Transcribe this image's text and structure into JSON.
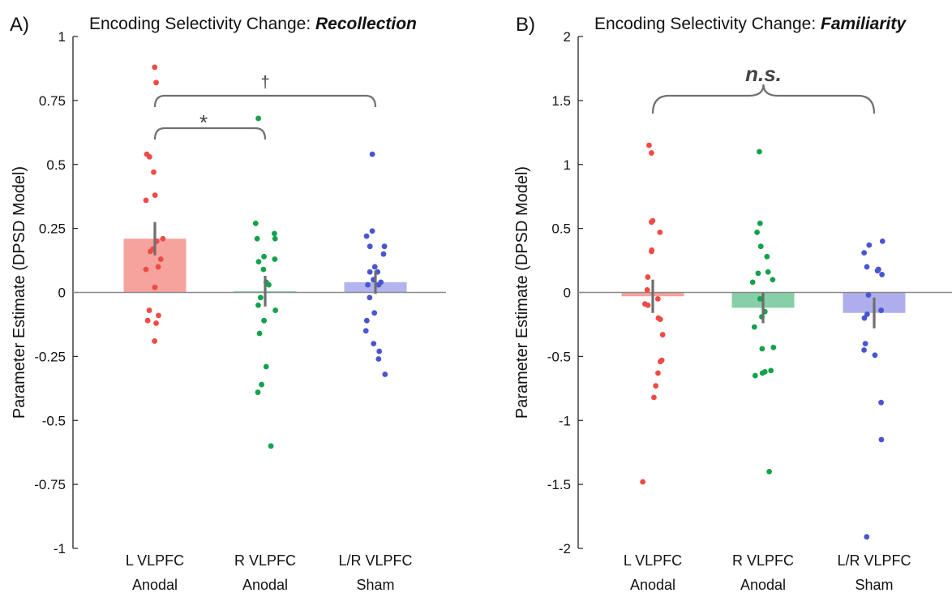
{
  "chart_data": [
    {
      "type": "bar",
      "panel_label": "A)",
      "title_prefix": "Encoding Selectivity Change: ",
      "title_emph": "Recollection",
      "ylabel": "Parameter Estimate (DPSD Model)",
      "ylim": [
        -1,
        1
      ],
      "yticks": [
        1,
        0.75,
        0.5,
        0.25,
        0,
        -0.25,
        -0.5,
        -0.75,
        -1
      ],
      "ytick_labels": [
        "1",
        "0.75",
        "0.5",
        "0.25",
        "0",
        "-0.25",
        "-0.5",
        "-0.75",
        "-1"
      ],
      "categories": [
        {
          "line1": "L VLPFC",
          "line2": "Anodal"
        },
        {
          "line1": "R VLPFC",
          "line2": "Anodal"
        },
        {
          "line1": "L/R VLPFC",
          "line2": "Sham"
        }
      ],
      "colors": {
        "bars": [
          "#f6a39d",
          "#9ad6b3",
          "#b3b3ee"
        ],
        "points": [
          "#ee4b45",
          "#12a24c",
          "#4a55cf"
        ],
        "error": "#6e6e6e",
        "zero_line": "#8a8a8a",
        "bracket": "#707070"
      },
      "values": [
        0.21,
        0.005,
        0.04
      ],
      "errors": [
        0.065,
        0.06,
        0.045
      ],
      "points": [
        [
          0.88,
          0.82,
          0.54,
          0.53,
          0.47,
          0.38,
          0.36,
          0.21,
          0.2,
          0.17,
          0.16,
          0.13,
          0.1,
          0.09,
          0.02,
          -0.07,
          -0.09,
          -0.11,
          -0.12,
          -0.19
        ],
        [
          0.68,
          0.27,
          0.23,
          0.21,
          0.21,
          0.14,
          0.13,
          0.12,
          0.09,
          0.04,
          0.03,
          -0.02,
          -0.05,
          -0.07,
          -0.11,
          -0.16,
          -0.29,
          -0.36,
          -0.39,
          -0.6
        ],
        [
          0.54,
          0.24,
          0.22,
          0.18,
          0.18,
          0.15,
          0.1,
          0.08,
          0.08,
          0.05,
          0.04,
          0.03,
          0.03,
          -0.02,
          -0.08,
          -0.11,
          -0.15,
          -0.2,
          -0.23,
          -0.26,
          -0.32
        ]
      ],
      "brackets": [
        {
          "from": 0,
          "to": 2,
          "label": "†",
          "label_style": "plain"
        },
        {
          "from": 0,
          "to": 1,
          "label": "*",
          "label_style": "plain"
        }
      ]
    },
    {
      "type": "bar",
      "panel_label": "B)",
      "title_prefix": "Encoding Selectivity Change: ",
      "title_emph": "Familiarity",
      "ylabel": "Parameter Estimate (DPSD Model)",
      "ylim": [
        -2,
        2
      ],
      "yticks": [
        2,
        1.5,
        1,
        0.5,
        0,
        -0.5,
        -1,
        -1.5,
        -2
      ],
      "ytick_labels": [
        "2",
        "1.5",
        "1",
        "0.5",
        "0",
        "-0.5",
        "-1",
        "-1.5",
        "-2"
      ],
      "categories": [
        {
          "line1": "L VLPFC",
          "line2": "Anodal"
        },
        {
          "line1": "R VLPFC",
          "line2": "Anodal"
        },
        {
          "line1": "L/R VLPFC",
          "line2": "Sham"
        }
      ],
      "colors": {
        "bars": [
          "#f6a39d",
          "#86cfa7",
          "#aeaeec"
        ],
        "points": [
          "#ee4b45",
          "#12a24c",
          "#4a55cf"
        ],
        "error": "#6e6e6e",
        "zero_line": "#8a8a8a",
        "bracket": "#707070"
      },
      "values": [
        -0.03,
        -0.12,
        -0.16
      ],
      "errors": [
        0.13,
        0.12,
        0.12
      ],
      "points": [
        [
          1.15,
          1.09,
          0.56,
          0.55,
          0.47,
          0.33,
          0.32,
          0.12,
          0.02,
          -0.05,
          -0.09,
          -0.1,
          -0.2,
          -0.21,
          -0.33,
          -0.53,
          -0.54,
          -0.63,
          -0.73,
          -0.82,
          -1.48
        ],
        [
          1.1,
          0.54,
          0.47,
          0.36,
          0.28,
          0.16,
          0.15,
          0.1,
          0.08,
          -0.05,
          -0.15,
          -0.19,
          -0.27,
          -0.43,
          -0.44,
          -0.61,
          -0.62,
          -0.63,
          -0.65,
          -1.4
        ],
        [
          0.4,
          0.37,
          0.31,
          0.2,
          0.18,
          0.18,
          0.17,
          0.14,
          -0.02,
          -0.14,
          -0.17,
          -0.2,
          -0.4,
          -0.45,
          -0.49,
          -0.86,
          -1.15,
          -1.91
        ]
      ],
      "brackets": [
        {
          "from": 0,
          "to": 2,
          "label": "n.s.",
          "label_style": "bold-italic",
          "curly": true
        }
      ]
    }
  ]
}
